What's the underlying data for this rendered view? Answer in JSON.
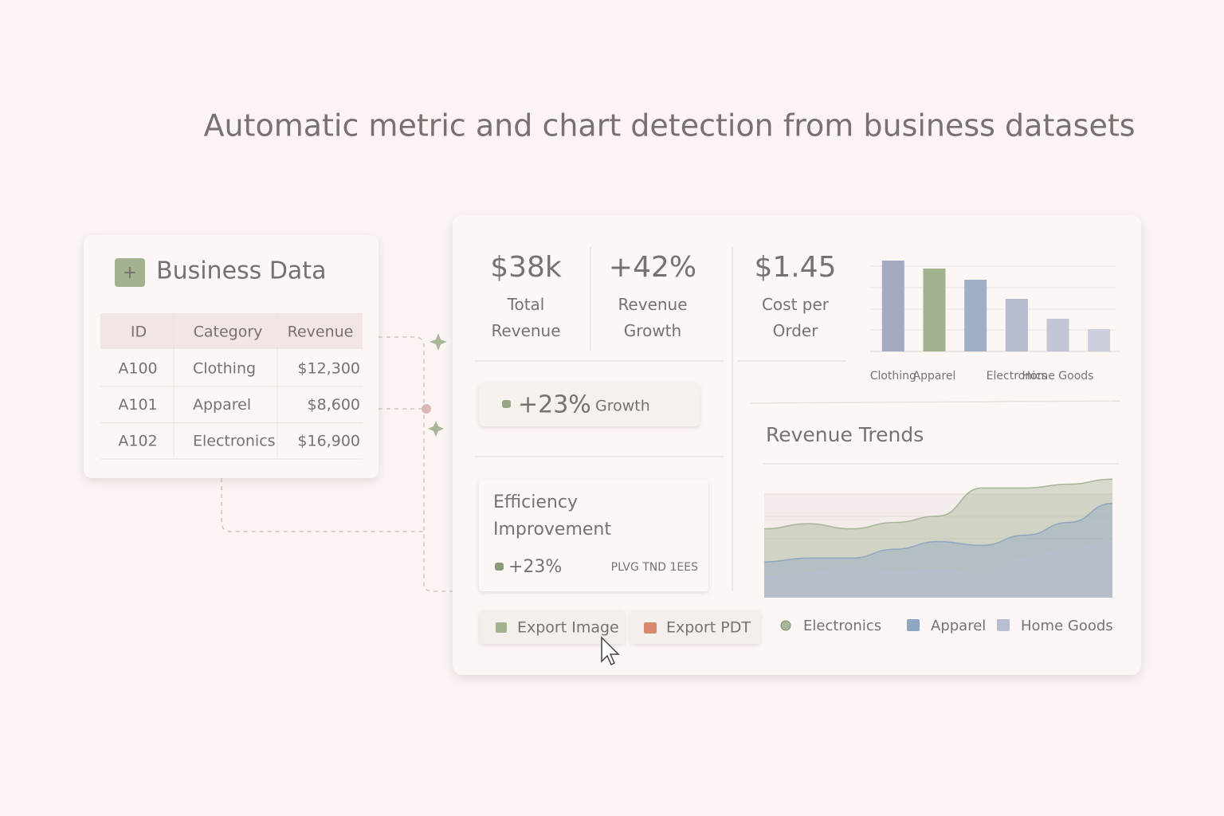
{
  "header": {
    "title": "Automatic metric and chart detection from business datasets"
  },
  "data_card": {
    "title": "Business Data",
    "table": {
      "columns": [
        "ID",
        "Category",
        "Revenue"
      ],
      "rows": [
        [
          "A100",
          "Clothing",
          "$12,300"
        ],
        [
          "A101",
          "Apparel",
          "$8,600"
        ],
        [
          "A102",
          "Electronics",
          "$16,900"
        ]
      ]
    }
  },
  "metrics": [
    {
      "value": "$38k",
      "label": "Total Revenue"
    },
    {
      "value": "+42%",
      "label": "Revenue Growth"
    },
    {
      "value": "$1.45",
      "label": "Cost per Order"
    }
  ],
  "growth_card": {
    "value": "+23%",
    "label": "Growth"
  },
  "efficiency_card": {
    "title": "Efficiency Improvement",
    "value": "+23%",
    "note": "PLVG TND 1EES"
  },
  "buttons": [
    "Export Image",
    "Export PDT"
  ],
  "chart_data": [
    {
      "type": "bar",
      "categories": [
        "Clothing",
        "Apparel",
        null,
        "Electronics",
        "Home Goods",
        null
      ],
      "values": [
        114,
        104,
        90,
        66,
        41,
        28
      ],
      "colors": [
        "#a3abc2",
        "#a2b18e",
        "#9fb0c6",
        "#b6bbce",
        "#c1c5d6",
        "#cbcedd"
      ],
      "ylim": [
        0,
        120
      ]
    },
    {
      "type": "area",
      "title": "Revenue Trends",
      "ylim": [
        0,
        100
      ],
      "series": [
        {
          "name": "Electronics",
          "color": "#a9b598",
          "values": [
            54,
            58,
            54,
            59,
            64,
            86,
            86,
            89,
            93
          ]
        },
        {
          "name": "Apparel",
          "color": "#8fa6c2",
          "values": [
            28,
            31,
            31,
            38,
            44,
            41,
            49,
            59,
            74
          ]
        },
        {
          "name": "Home Goods",
          "color": "#b9bdd2",
          "values": [
            16,
            19,
            24,
            20,
            22,
            18,
            31,
            38,
            44
          ]
        }
      ]
    }
  ]
}
